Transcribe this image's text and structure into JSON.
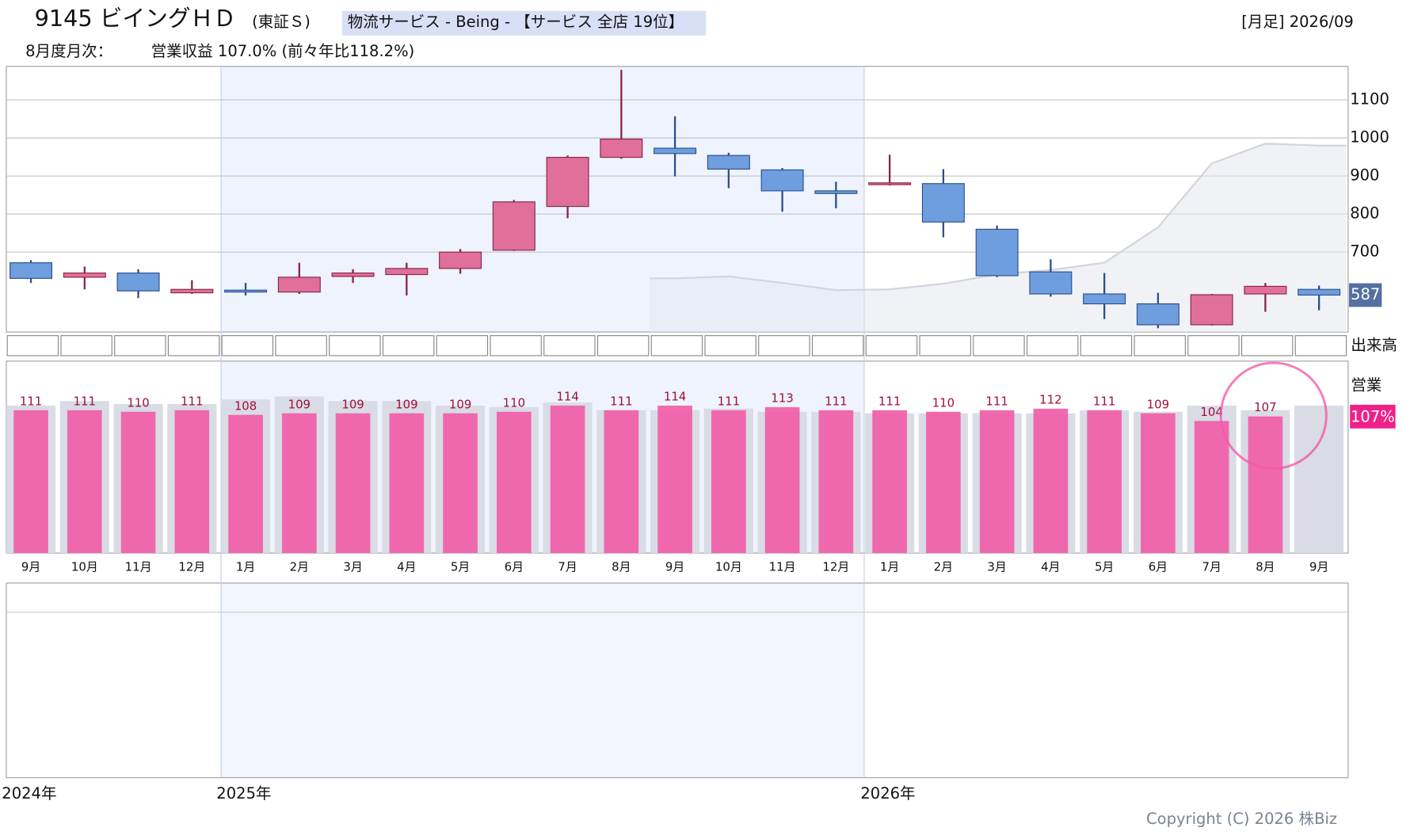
{
  "header": {
    "title": "9145 ビイングＨＤ",
    "market": "(東証Ｓ)",
    "sector": "物流サービス - Being - 【サービス 全店 19位】",
    "period": "[月足] 2026/09",
    "monthly_label": "8月度月次：",
    "monthly_value": "営業収益 107.0% (前々年比118.2%)"
  },
  "volume_label": "出来高",
  "chart_data": [
    {
      "type": "candlestick",
      "open": [
        672,
        634,
        645,
        593,
        600,
        595,
        636,
        641,
        657,
        705,
        820,
        949,
        973,
        954,
        916,
        861,
        878,
        880,
        760,
        648,
        590,
        564,
        509,
        590,
        602
      ],
      "high": [
        679,
        662,
        655,
        626,
        619,
        672,
        655,
        672,
        708,
        837,
        954,
        1179,
        1057,
        961,
        921,
        885,
        956,
        918,
        770,
        681,
        645,
        593,
        590,
        619,
        612
      ],
      "low": [
        619,
        602,
        579,
        590,
        586,
        590,
        619,
        586,
        643,
        703,
        789,
        945,
        899,
        868,
        806,
        815,
        875,
        739,
        634,
        583,
        524,
        500,
        507,
        543,
        547
      ],
      "close": [
        631,
        645,
        598,
        602,
        595,
        634,
        645,
        657,
        700,
        832,
        949,
        997,
        959,
        918,
        861,
        854,
        882,
        779,
        638,
        590,
        564,
        509,
        588,
        610,
        587
      ],
      "up_color": "#e0709a",
      "down_color": "#6e9ede",
      "ma": {
        "color": "#d4d6de",
        "values": [
          null,
          null,
          null,
          null,
          null,
          null,
          null,
          null,
          null,
          null,
          null,
          null,
          631,
          636,
          619,
          600,
          602,
          617,
          641,
          653,
          672,
          765,
          933,
          985,
          980
        ]
      },
      "ylim": [
        490,
        1188
      ],
      "yticks": [
        700,
        800,
        900,
        1000,
        1100
      ],
      "grid": true
    },
    {
      "type": "bar",
      "categories": [
        "9月",
        "10月",
        "11月",
        "12月",
        "1月",
        "2月",
        "3月",
        "4月",
        "5月",
        "6月",
        "7月",
        "8月",
        "9月",
        "10月",
        "11月",
        "12月",
        "1月",
        "2月",
        "3月",
        "4月",
        "5月",
        "6月",
        "7月",
        "8月",
        "9月"
      ],
      "series": [
        {
          "name": "営業",
          "color": "#f062aa",
          "values": [
            111,
            111,
            110,
            111,
            108,
            109,
            109,
            109,
            109,
            110,
            114,
            111,
            114,
            111,
            113,
            111,
            111,
            110,
            111,
            112,
            111,
            109,
            104,
            107,
            null
          ]
        },
        {
          "color": "#d9dbe5",
          "values": [
            114,
            117,
            115,
            115,
            118,
            120,
            117,
            117,
            114,
            113,
            116,
            111,
            111,
            112,
            110,
            110,
            109,
            109,
            109,
            109,
            111,
            110,
            114,
            111,
            114
          ]
        }
      ],
      "current_label": "107%",
      "ylim": [
        18,
        143
      ]
    }
  ],
  "footer": {
    "years": [
      "2024年",
      "2025年",
      "2026年"
    ],
    "copyright": "Copyright (C) 2026 株Biz"
  }
}
